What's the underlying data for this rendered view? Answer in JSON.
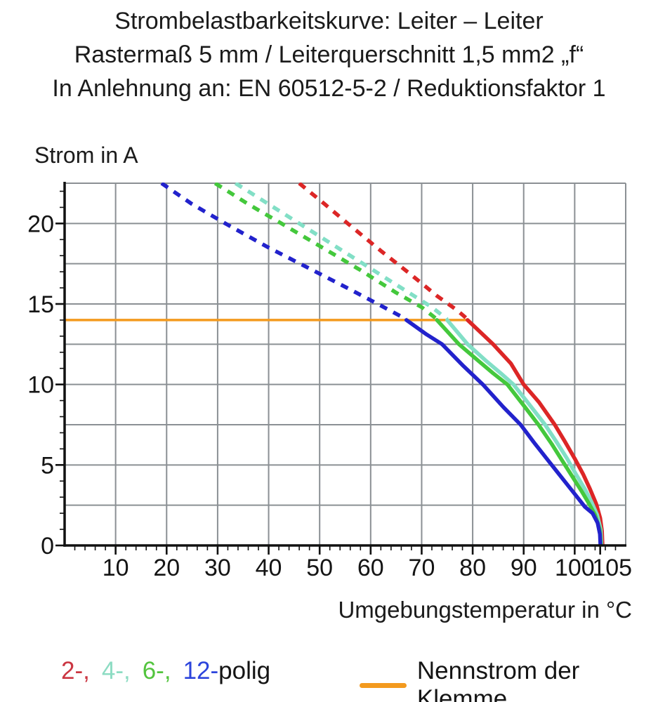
{
  "title": {
    "line1": "Strombelastbarkeitskurve: Leiter – Leiter",
    "line2": "Rastermaß 5 mm / Leiterquerschnitt 1,5 mm2 „f“",
    "line3": "In Anlehnung an: EN 60512-5-2 / Reduktionsfaktor 1"
  },
  "legend": {
    "poles": [
      {
        "label": "2-,",
        "color": "#cb3642"
      },
      {
        "label": "4-,",
        "color": "#8ddcc3"
      },
      {
        "label": "6-,",
        "color": "#53c43e"
      },
      {
        "label": "12-",
        "color": "#2d45dc"
      }
    ],
    "suffix": "polig",
    "nennstrom": "Nennstrom der Klemme",
    "nennstrom_color": "#f39a1e"
  },
  "chart_data": {
    "type": "line",
    "title": "",
    "xlabel": "Umgebungstemperatur in °C",
    "ylabel": "Strom in A",
    "xlim": [
      0,
      110
    ],
    "ylim": [
      0,
      22.5
    ],
    "grid": true,
    "grid_color": "#8b9094",
    "axis_color": "#111111",
    "x_grid_step": 10,
    "y_grid_step": 2.5,
    "x_minor_step": 2,
    "y_minor_step": 1,
    "x_tick_labels": [
      {
        "value": 10,
        "label": "10"
      },
      {
        "value": 20,
        "label": "20"
      },
      {
        "value": 30,
        "label": "30"
      },
      {
        "value": 40,
        "label": "40"
      },
      {
        "value": 50,
        "label": "50"
      },
      {
        "value": 60,
        "label": "60"
      },
      {
        "value": 70,
        "label": "70"
      },
      {
        "value": 80,
        "label": "80"
      },
      {
        "value": 90,
        "label": "90"
      },
      {
        "value": 100,
        "label": "100"
      },
      {
        "value": 105,
        "label": "105",
        "dx": 17
      }
    ],
    "y_tick_labels": [
      {
        "value": 0,
        "label": "0"
      },
      {
        "value": 5,
        "label": "5"
      },
      {
        "value": 10,
        "label": "10"
      },
      {
        "value": 15,
        "label": "15"
      },
      {
        "value": 20,
        "label": "20"
      }
    ],
    "legend_position": "bottom",
    "series": [
      {
        "id": "nennstrom",
        "name": "Nennstrom der Klemme",
        "color": "#f39a1e",
        "width": 3.5,
        "points": [
          [
            0,
            14
          ],
          [
            79,
            14
          ]
        ]
      },
      {
        "id": "2polig",
        "name": "2-polig",
        "color": "#dc2626",
        "width": 5.5,
        "dashed_points": [
          [
            46,
            22.5
          ],
          [
            51,
            21.2
          ],
          [
            55.5,
            20
          ],
          [
            62,
            18.3
          ],
          [
            68,
            16.8
          ],
          [
            73,
            15.5
          ],
          [
            77,
            14.6
          ],
          [
            79,
            14.05
          ]
        ],
        "solid_points": [
          [
            79,
            14
          ],
          [
            84,
            12.5
          ],
          [
            87.5,
            11.3
          ],
          [
            90,
            10
          ],
          [
            93,
            8.9
          ],
          [
            96.1,
            7.5
          ],
          [
            98,
            6.5
          ],
          [
            100,
            5.4
          ],
          [
            101.7,
            4.4
          ],
          [
            103,
            3.5
          ],
          [
            104.2,
            2.6
          ],
          [
            105,
            1.7
          ],
          [
            105.35,
            0.9
          ],
          [
            105.45,
            0
          ]
        ]
      },
      {
        "id": "4polig",
        "name": "4-polig",
        "color": "#82dfc6",
        "width": 5.5,
        "dashed_points": [
          [
            33.5,
            22.5
          ],
          [
            40,
            21.2
          ],
          [
            46,
            20
          ],
          [
            54,
            18.4
          ],
          [
            61,
            17.0
          ],
          [
            67,
            15.8
          ],
          [
            72,
            14.8
          ],
          [
            75,
            14.05
          ]
        ],
        "solid_points": [
          [
            75,
            14
          ],
          [
            79,
            12.5
          ],
          [
            82.5,
            11.5
          ],
          [
            85.5,
            10.7
          ],
          [
            88,
            10
          ],
          [
            91,
            8.8
          ],
          [
            94.2,
            7.5
          ],
          [
            96.5,
            6.4
          ],
          [
            98.5,
            5.4
          ],
          [
            100.3,
            4.4
          ],
          [
            102,
            3.5
          ],
          [
            103.3,
            2.7
          ],
          [
            104.4,
            1.9
          ],
          [
            105.1,
            1.0
          ],
          [
            105.25,
            0
          ]
        ]
      },
      {
        "id": "6polig",
        "name": "6-polig",
        "color": "#44c83c",
        "width": 5.5,
        "dashed_points": [
          [
            29.5,
            22.5
          ],
          [
            36,
            21.2
          ],
          [
            42.5,
            20
          ],
          [
            50,
            18.6
          ],
          [
            58,
            17.1
          ],
          [
            65,
            15.7
          ],
          [
            70,
            14.8
          ],
          [
            73,
            14.05
          ]
        ],
        "solid_points": [
          [
            73,
            14
          ],
          [
            77.3,
            12.5
          ],
          [
            81,
            11.5
          ],
          [
            84,
            10.7
          ],
          [
            86.8,
            10
          ],
          [
            90,
            8.7
          ],
          [
            92.9,
            7.5
          ],
          [
            95.5,
            6.3
          ],
          [
            97.5,
            5.3
          ],
          [
            99.5,
            4.3
          ],
          [
            101.3,
            3.4
          ],
          [
            102.8,
            2.6
          ],
          [
            104,
            1.9
          ],
          [
            104.9,
            1.0
          ],
          [
            105.15,
            0
          ]
        ]
      },
      {
        "id": "12polig",
        "name": "12-polig",
        "color": "#2222cc",
        "width": 5.5,
        "dashed_points": [
          [
            19,
            22.5
          ],
          [
            25,
            21.2
          ],
          [
            31.5,
            20
          ],
          [
            40,
            18.5
          ],
          [
            48,
            17.2
          ],
          [
            56,
            15.9
          ],
          [
            62,
            14.9
          ],
          [
            67,
            14.05
          ]
        ],
        "solid_points": [
          [
            67,
            14
          ],
          [
            71,
            13.1
          ],
          [
            74,
            12.5
          ],
          [
            78,
            11.2
          ],
          [
            82,
            10
          ],
          [
            86,
            8.6
          ],
          [
            89.4,
            7.5
          ],
          [
            92,
            6.4
          ],
          [
            94.5,
            5.4
          ],
          [
            96.5,
            4.6
          ],
          [
            98.5,
            3.8
          ],
          [
            100.5,
            3.0
          ],
          [
            102,
            2.4
          ],
          [
            103.5,
            2.0
          ],
          [
            104.5,
            1.4
          ],
          [
            104.95,
            0.7
          ],
          [
            105.05,
            0
          ]
        ]
      }
    ]
  }
}
